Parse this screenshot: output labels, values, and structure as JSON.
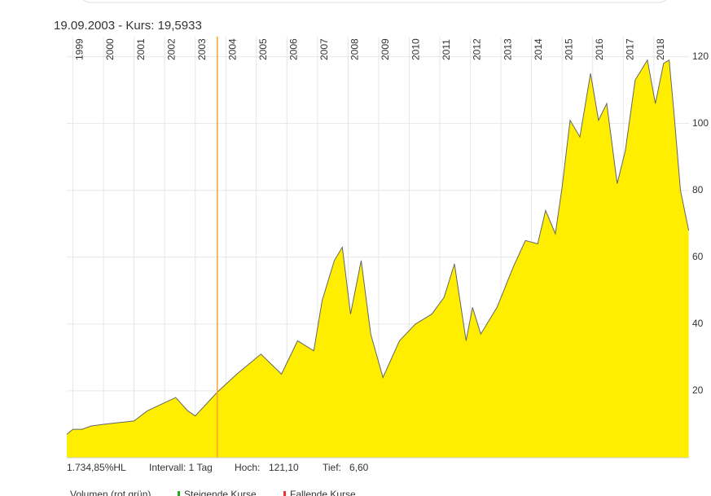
{
  "chart_data": {
    "type": "area",
    "title": "19.09.2003  -  Kurs: 19,5933",
    "x": [
      1998.8,
      1999.0,
      1999.3,
      1999.6,
      2000.0,
      2000.5,
      2001.0,
      2001.43,
      2002.36,
      2002.76,
      2003.0,
      2003.72,
      2004.36,
      2005.15,
      2005.82,
      2006.35,
      2006.88,
      2007.15,
      2007.55,
      2007.81,
      2008.08,
      2008.43,
      2008.74,
      2009.14,
      2009.68,
      2010.2,
      2010.74,
      2011.14,
      2011.48,
      2011.86,
      2012.07,
      2012.34,
      2012.87,
      2013.4,
      2013.8,
      2014.2,
      2014.46,
      2014.78,
      2015.0,
      2015.26,
      2015.58,
      2015.93,
      2016.19,
      2016.46,
      2016.8,
      2017.07,
      2017.39,
      2017.79,
      2018.05,
      2018.32,
      2018.5,
      2018.66,
      2018.87,
      2019.14
    ],
    "series": [
      {
        "name": "Kurs",
        "color": "#ffee00",
        "line_color": "#666666",
        "values": [
          7,
          8.5,
          8.5,
          9.5,
          10,
          10.5,
          11,
          14,
          18,
          14,
          12.5,
          19.6,
          25,
          31,
          25,
          35,
          32,
          47,
          59,
          63,
          43,
          59,
          37,
          24,
          35,
          40,
          43,
          48,
          58,
          35,
          45,
          37,
          45,
          57,
          65,
          64,
          74,
          67,
          81,
          101,
          96,
          115,
          101,
          106,
          82,
          92,
          113,
          119,
          106,
          118,
          119,
          103,
          80,
          68
        ]
      }
    ],
    "xlim": [
      1998.8,
      2019.15
    ],
    "xticks": [
      1999,
      2000,
      2001,
      2002,
      2003,
      2004,
      2005,
      2006,
      2007,
      2008,
      2009,
      2010,
      2011,
      2012,
      2013,
      2014,
      2015,
      2016,
      2017,
      2018
    ],
    "ylim": [
      0,
      126
    ],
    "yticks": [
      20,
      40,
      60,
      80,
      100,
      120
    ],
    "grid": true,
    "cursor_x": 2003.72,
    "cursor_color": "#ffa030",
    "footer": [
      "1.734,85%HL",
      "Intervall: 1 Tag",
      "Hoch:",
      "121,10",
      "Tief:",
      "6,60"
    ],
    "legend": [
      "Volumen (rot grün)",
      "Steigende Kurse",
      "Fallende Kurse"
    ]
  }
}
